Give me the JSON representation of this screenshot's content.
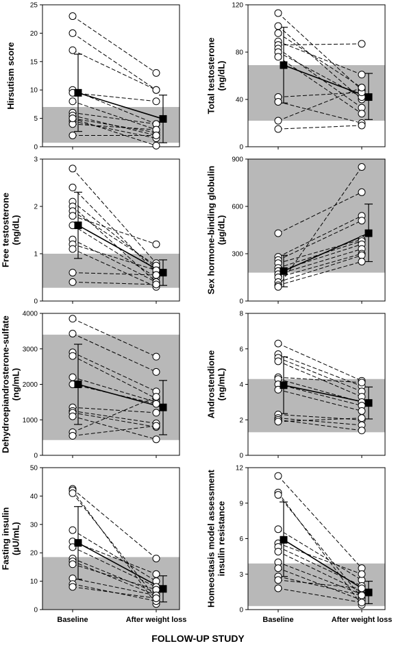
{
  "figure_title": "FOLLOW-UP STUDY",
  "x_categories": [
    "Baseline",
    "After weight loss"
  ],
  "chart_data": [
    {
      "type": "scatter",
      "ylabel_lines": [
        "Hirsutism score"
      ],
      "ylim": [
        0,
        25
      ],
      "yticks": [
        0,
        5,
        10,
        15,
        20,
        25
      ],
      "normal_range": [
        0.7,
        7
      ],
      "pairs": [
        [
          23,
          13
        ],
        [
          20,
          10
        ],
        [
          17,
          10
        ],
        [
          10,
          4
        ],
        [
          9.5,
          8
        ],
        [
          8,
          3
        ],
        [
          6,
          4
        ],
        [
          5.5,
          2
        ],
        [
          5,
          2.5
        ],
        [
          4.5,
          1.5
        ],
        [
          4,
          3
        ],
        [
          2,
          2
        ],
        [
          5,
          0.2
        ]
      ],
      "mean": [
        9.5,
        4.9
      ],
      "sd": [
        [
          2.7,
          16.3
        ],
        [
          0.7,
          9.1
        ]
      ]
    },
    {
      "type": "scatter",
      "ylabel_lines": [
        "Total testosterone",
        "(ng/dL)"
      ],
      "ylim": [
        0,
        120
      ],
      "yticks": [
        0,
        40,
        80,
        120
      ],
      "normal_range": [
        22,
        69
      ],
      "pairs": [
        [
          113,
          48
        ],
        [
          102,
          40
        ],
        [
          96,
          50
        ],
        [
          89,
          61
        ],
        [
          86,
          87
        ],
        [
          83,
          33
        ],
        [
          80,
          42
        ],
        [
          76,
          28
        ],
        [
          42,
          46
        ],
        [
          38,
          20
        ],
        [
          22,
          50
        ],
        [
          15,
          18
        ]
      ],
      "mean": [
        69,
        42
      ],
      "sd": [
        [
          37,
          101
        ],
        [
          23,
          62
        ]
      ]
    },
    {
      "type": "scatter",
      "ylabel_lines": [
        "Free testosterone",
        "(ng/dL)"
      ],
      "ylim": [
        0,
        3
      ],
      "yticks": [
        0,
        1,
        2,
        3
      ],
      "normal_range": [
        0.28,
        1.0
      ],
      "pairs": [
        [
          2.8,
          0.8
        ],
        [
          2.4,
          0.6
        ],
        [
          2.1,
          0.7
        ],
        [
          2.0,
          0.4
        ],
        [
          1.9,
          0.75
        ],
        [
          1.8,
          1.2
        ],
        [
          1.6,
          0.5
        ],
        [
          1.3,
          0.4
        ],
        [
          1.2,
          0.65
        ],
        [
          1.1,
          0.3
        ],
        [
          0.6,
          0.55
        ],
        [
          0.4,
          0.35
        ]
      ],
      "mean": [
        1.6,
        0.6
      ],
      "sd": [
        [
          0.9,
          2.3
        ],
        [
          0.33,
          0.87
        ]
      ]
    },
    {
      "type": "scatter",
      "ylabel_lines": [
        "Sex hormone-binding globulin",
        "(µg/dL)"
      ],
      "ylim": [
        0,
        900
      ],
      "yticks": [
        0,
        300,
        600,
        900
      ],
      "normal_range": [
        180,
        900
      ],
      "pairs": [
        [
          430,
          690
        ],
        [
          280,
          540
        ],
        [
          260,
          510
        ],
        [
          240,
          390
        ],
        [
          210,
          380
        ],
        [
          190,
          360
        ],
        [
          170,
          330
        ],
        [
          150,
          300
        ],
        [
          120,
          290
        ],
        [
          100,
          250
        ],
        [
          90,
          850
        ]
      ],
      "mean": [
        190,
        430
      ],
      "sd": [
        [
          90,
          290
        ],
        [
          250,
          615
        ]
      ]
    },
    {
      "type": "scatter",
      "ylabel_lines": [
        "Dehydroepiandrosterone-sulfate",
        "(ng/mL)"
      ],
      "ylim": [
        0,
        4000
      ],
      "yticks": [
        0,
        1000,
        2000,
        3000,
        4000
      ],
      "normal_range": [
        430,
        3400
      ],
      "pairs": [
        [
          3850,
          2780
        ],
        [
          3430,
          2350
        ],
        [
          2900,
          1800
        ],
        [
          2800,
          1600
        ],
        [
          2200,
          1500
        ],
        [
          2000,
          1450
        ],
        [
          1350,
          1200
        ],
        [
          1250,
          900
        ],
        [
          1200,
          800
        ],
        [
          1100,
          450
        ],
        [
          650,
          1650
        ],
        [
          550,
          830
        ]
      ],
      "mean": [
        2000,
        1350
      ],
      "sd": [
        [
          870,
          3130
        ],
        [
          580,
          2110
        ]
      ]
    },
    {
      "type": "scatter",
      "ylabel_lines": [
        "Androstendione",
        "(ng/mL)"
      ],
      "ylim": [
        0,
        8
      ],
      "yticks": [
        0,
        2,
        4,
        6,
        8
      ],
      "normal_range": [
        1.3,
        4.3
      ],
      "pairs": [
        [
          6.3,
          4.2
        ],
        [
          5.7,
          3.9
        ],
        [
          5.5,
          3.6
        ],
        [
          5.3,
          3.3
        ],
        [
          4.4,
          4.1
        ],
        [
          4.3,
          3.0
        ],
        [
          4.0,
          2.8
        ],
        [
          3.7,
          2.5
        ],
        [
          2.3,
          2.0
        ],
        [
          2.1,
          1.7
        ],
        [
          2.0,
          1.4
        ],
        [
          1.9,
          2.1
        ]
      ],
      "mean": [
        3.95,
        2.95
      ],
      "sd": [
        [
          2.35,
          5.55
        ],
        [
          2.05,
          3.85
        ]
      ]
    },
    {
      "type": "scatter",
      "ylabel_lines": [
        "Fasting insulin",
        "(µU/mL)"
      ],
      "ylim": [
        0,
        50
      ],
      "yticks": [
        0,
        10,
        20,
        30,
        40,
        50
      ],
      "normal_range": [
        0,
        18.5
      ],
      "pairs": [
        [
          42.5,
          18
        ],
        [
          42,
          2
        ],
        [
          41,
          4
        ],
        [
          28,
          10
        ],
        [
          24,
          12.5
        ],
        [
          22,
          8
        ],
        [
          18,
          6
        ],
        [
          17,
          5
        ],
        [
          16,
          7
        ],
        [
          11,
          5
        ],
        [
          9,
          3
        ],
        [
          8,
          4
        ]
      ],
      "mean": [
        23.5,
        7.3
      ],
      "sd": [
        [
          10.7,
          36.3
        ],
        [
          2.7,
          11.9
        ]
      ]
    },
    {
      "type": "scatter",
      "ylabel_lines": [
        "Homeostasis model assessment",
        "insulin resistance"
      ],
      "ylim": [
        0,
        12
      ],
      "yticks": [
        0,
        3,
        6,
        9,
        12
      ],
      "normal_range": [
        0.3,
        3.9
      ],
      "pairs": [
        [
          11.3,
          3.5
        ],
        [
          9.9,
          0.4
        ],
        [
          9.7,
          1.0
        ],
        [
          6.8,
          2.5
        ],
        [
          5.6,
          3.0
        ],
        [
          5.3,
          2.0
        ],
        [
          4.9,
          1.5
        ],
        [
          4.0,
          1.3
        ],
        [
          3.5,
          0.8
        ],
        [
          2.8,
          1.2
        ],
        [
          2.5,
          1.8
        ],
        [
          1.8,
          0.6
        ]
      ],
      "mean": [
        5.9,
        1.45
      ],
      "sd": [
        [
          2.8,
          9.1
        ],
        [
          0.5,
          2.4
        ]
      ]
    }
  ]
}
